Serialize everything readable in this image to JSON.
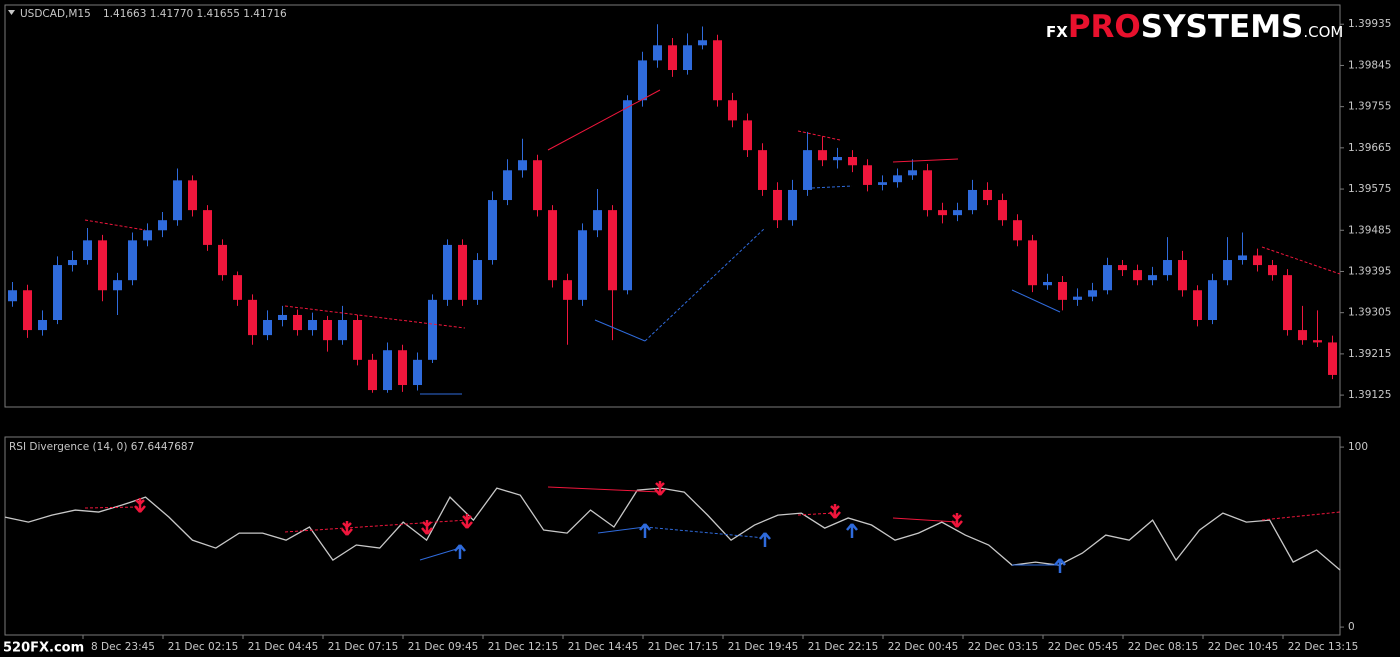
{
  "header": {
    "symbol": "USDCAD,M15",
    "quote": "1.41663 1.41770 1.41655 1.41716"
  },
  "logo": {
    "prefix": "FX",
    "brand_red": "PRO",
    "brand_white": "SYSTEMS",
    "suffix": ".COM"
  },
  "watermark": "520FX.com",
  "time_axis": {
    "labels": [
      "8 Dec 23:45",
      "21 Dec 02:15",
      "21 Dec 04:45",
      "21 Dec 07:15",
      "21 Dec 09:45",
      "21 Dec 12:15",
      "21 Dec 14:45",
      "21 Dec 17:15",
      "21 Dec 19:45",
      "21 Dec 22:15",
      "22 Dec 00:45",
      "22 Dec 03:15",
      "22 Dec 05:45",
      "22 Dec 08:15",
      "22 Dec 10:45",
      "22 Dec 13:15"
    ]
  },
  "chart_data": [
    {
      "type": "candlestick",
      "up_color": "#2f6bdc",
      "down_color": "#f0163c",
      "ylim": [
        1.39099,
        1.39977
      ],
      "yticks": [
        1.39935,
        1.39845,
        1.39755,
        1.39665,
        1.39575,
        1.39485,
        1.39395,
        1.39305,
        1.39215,
        1.39125
      ],
      "open": [
        1.3933,
        1.39354,
        1.39267,
        1.39289,
        1.39409,
        1.3942,
        1.39463,
        1.39354,
        1.39376,
        1.39463,
        1.39485,
        1.39507,
        1.39594,
        1.39529,
        1.39453,
        1.39387,
        1.39333,
        1.39256,
        1.39289,
        1.393,
        1.39267,
        1.39289,
        1.39245,
        1.39289,
        1.39202,
        1.39136,
        1.39223,
        1.39147,
        1.39202,
        1.39333,
        1.39453,
        1.39333,
        1.3942,
        1.39551,
        1.39616,
        1.39638,
        1.39529,
        1.39376,
        1.39333,
        1.39485,
        1.39529,
        1.39354,
        1.39769,
        1.39856,
        1.39889,
        1.39835,
        1.39889,
        1.399,
        1.39769,
        1.39725,
        1.3966,
        1.39573,
        1.39507,
        1.39573,
        1.3966,
        1.39638,
        1.39645,
        1.39627,
        1.39584,
        1.3959,
        1.39605,
        1.39616,
        1.39529,
        1.39518,
        1.39529,
        1.39573,
        1.39551,
        1.39507,
        1.39463,
        1.39365,
        1.39372,
        1.39333,
        1.3934,
        1.39354,
        1.39409,
        1.39398,
        1.39376,
        1.39387,
        1.3942,
        1.39354,
        1.39289,
        1.39376,
        1.3942,
        1.3943,
        1.39409,
        1.39387,
        1.39267,
        1.39245,
        1.3924
      ],
      "high": [
        1.39372,
        1.39366,
        1.3931,
        1.39428,
        1.3944,
        1.3949,
        1.39475,
        1.39392,
        1.3948,
        1.395,
        1.39525,
        1.3962,
        1.39605,
        1.3954,
        1.39465,
        1.39395,
        1.39345,
        1.3931,
        1.3932,
        1.39312,
        1.39305,
        1.39298,
        1.3932,
        1.393,
        1.39215,
        1.3924,
        1.39235,
        1.39218,
        1.39345,
        1.39465,
        1.39465,
        1.39435,
        1.3957,
        1.3964,
        1.39685,
        1.3965,
        1.3954,
        1.3939,
        1.395,
        1.39575,
        1.3954,
        1.3978,
        1.39875,
        1.39935,
        1.39905,
        1.39915,
        1.3993,
        1.39912,
        1.39785,
        1.3974,
        1.39675,
        1.3959,
        1.39595,
        1.397,
        1.3969,
        1.39665,
        1.3966,
        1.3964,
        1.39605,
        1.3962,
        1.3964,
        1.3963,
        1.39545,
        1.39545,
        1.39595,
        1.3959,
        1.39565,
        1.3952,
        1.39475,
        1.3939,
        1.39385,
        1.39358,
        1.3937,
        1.39425,
        1.3942,
        1.3941,
        1.39405,
        1.3947,
        1.3944,
        1.39365,
        1.3939,
        1.3947,
        1.3948,
        1.39445,
        1.3942,
        1.394,
        1.3932,
        1.3931,
        1.39255
      ],
      "low": [
        1.39318,
        1.3925,
        1.39255,
        1.3928,
        1.39395,
        1.3941,
        1.3933,
        1.393,
        1.39365,
        1.3945,
        1.3947,
        1.39495,
        1.39515,
        1.3944,
        1.39375,
        1.3932,
        1.39235,
        1.39245,
        1.39275,
        1.39255,
        1.39255,
        1.3922,
        1.39235,
        1.3919,
        1.3913,
        1.3913,
        1.39132,
        1.39135,
        1.39195,
        1.3932,
        1.3932,
        1.39322,
        1.3941,
        1.3954,
        1.396,
        1.39515,
        1.3936,
        1.39235,
        1.3932,
        1.3947,
        1.39245,
        1.39345,
        1.39755,
        1.3984,
        1.3982,
        1.39825,
        1.3988,
        1.39755,
        1.3971,
        1.39645,
        1.3956,
        1.3949,
        1.39495,
        1.3956,
        1.39625,
        1.3962,
        1.39612,
        1.3957,
        1.39572,
        1.39578,
        1.39595,
        1.39515,
        1.395,
        1.39505,
        1.3952,
        1.3954,
        1.39495,
        1.3945,
        1.3935,
        1.39355,
        1.3931,
        1.3932,
        1.3933,
        1.39345,
        1.39385,
        1.39365,
        1.39365,
        1.39375,
        1.3934,
        1.39275,
        1.3928,
        1.39365,
        1.3941,
        1.39395,
        1.39375,
        1.39255,
        1.39235,
        1.3923,
        1.3916
      ],
      "close": [
        1.39354,
        1.39267,
        1.39289,
        1.39409,
        1.3942,
        1.39463,
        1.39354,
        1.39376,
        1.39463,
        1.39485,
        1.39507,
        1.39594,
        1.39529,
        1.39453,
        1.39387,
        1.39333,
        1.39256,
        1.39289,
        1.393,
        1.39267,
        1.39289,
        1.39245,
        1.39289,
        1.39202,
        1.39136,
        1.39223,
        1.39147,
        1.39202,
        1.39333,
        1.39453,
        1.39333,
        1.3942,
        1.39551,
        1.39616,
        1.39638,
        1.39529,
        1.39376,
        1.39333,
        1.39485,
        1.39529,
        1.39354,
        1.39769,
        1.39856,
        1.39889,
        1.39835,
        1.39889,
        1.399,
        1.39769,
        1.39725,
        1.3966,
        1.39573,
        1.39507,
        1.39573,
        1.3966,
        1.39638,
        1.39645,
        1.39627,
        1.39584,
        1.3959,
        1.39605,
        1.39616,
        1.39529,
        1.39518,
        1.39529,
        1.39573,
        1.39551,
        1.39507,
        1.39463,
        1.39365,
        1.39372,
        1.39333,
        1.3934,
        1.39354,
        1.39409,
        1.39398,
        1.39376,
        1.39387,
        1.3942,
        1.39354,
        1.39289,
        1.39376,
        1.3942,
        1.3943,
        1.39409,
        1.39387,
        1.39267,
        1.39245,
        1.3924,
        1.39169
      ]
    },
    {
      "type": "line",
      "title": "RSI Divergence (14, 0) 67.6447687",
      "color": "#c8c8c8",
      "ylim": [
        -4.4,
        105.6
      ],
      "yticks": [
        100,
        0
      ],
      "values": [
        61.1,
        58.3,
        62.2,
        65.0,
        63.9,
        67.8,
        72.2,
        61.1,
        48.3,
        43.9,
        52.2,
        52.2,
        48.3,
        55.6,
        37.2,
        45.6,
        43.9,
        58.3,
        48.3,
        72.2,
        59.4,
        77.2,
        73.3,
        53.9,
        52.2,
        65.0,
        55.6,
        76.1,
        77.2,
        75.0,
        62.2,
        48.3,
        56.7,
        62.2,
        63.3,
        55.0,
        60.6,
        56.7,
        48.3,
        52.2,
        58.3,
        51.1,
        45.6,
        34.4,
        36.1,
        34.4,
        41.1,
        51.1,
        48.3,
        59.4,
        37.2,
        53.9,
        63.3,
        58.3,
        59.4,
        36.1,
        42.8,
        31.7
      ]
    }
  ]
}
